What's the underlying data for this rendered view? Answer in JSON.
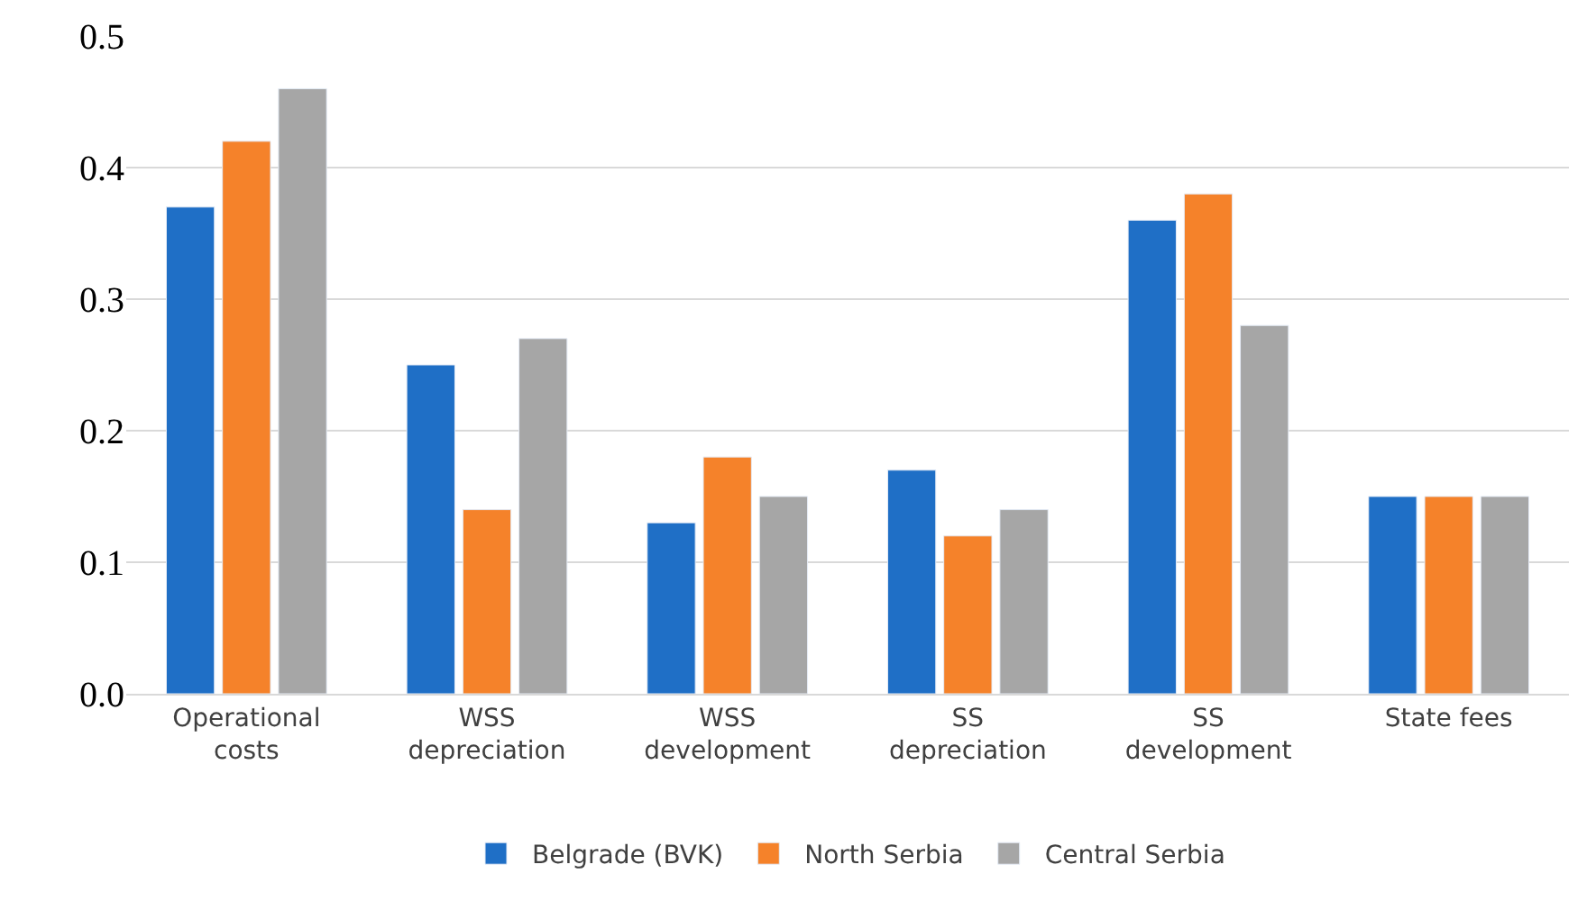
{
  "chart_data": {
    "type": "bar",
    "categories": [
      "Operational costs",
      "WSS depreciation",
      "WSS development",
      "SS depreciation",
      "SS development",
      "State fees"
    ],
    "series": [
      {
        "name": "Belgrade (BVK)",
        "color": "#1f6fc6",
        "values": [
          0.37,
          0.25,
          0.13,
          0.17,
          0.36,
          0.15
        ]
      },
      {
        "name": "North Serbia",
        "color": "#f5822a",
        "values": [
          0.42,
          0.14,
          0.18,
          0.12,
          0.38,
          0.15
        ]
      },
      {
        "name": "Central Serbia",
        "color": "#a6a6a6",
        "values": [
          0.46,
          0.27,
          0.15,
          0.14,
          0.28,
          0.15
        ]
      }
    ],
    "ylim": [
      0,
      0.5
    ],
    "yticks": [
      {
        "value": 0,
        "label": "0.0"
      },
      0.1,
      0.2,
      0.3,
      0.4,
      0.5
    ],
    "grid": "y",
    "legend": "bottom"
  }
}
